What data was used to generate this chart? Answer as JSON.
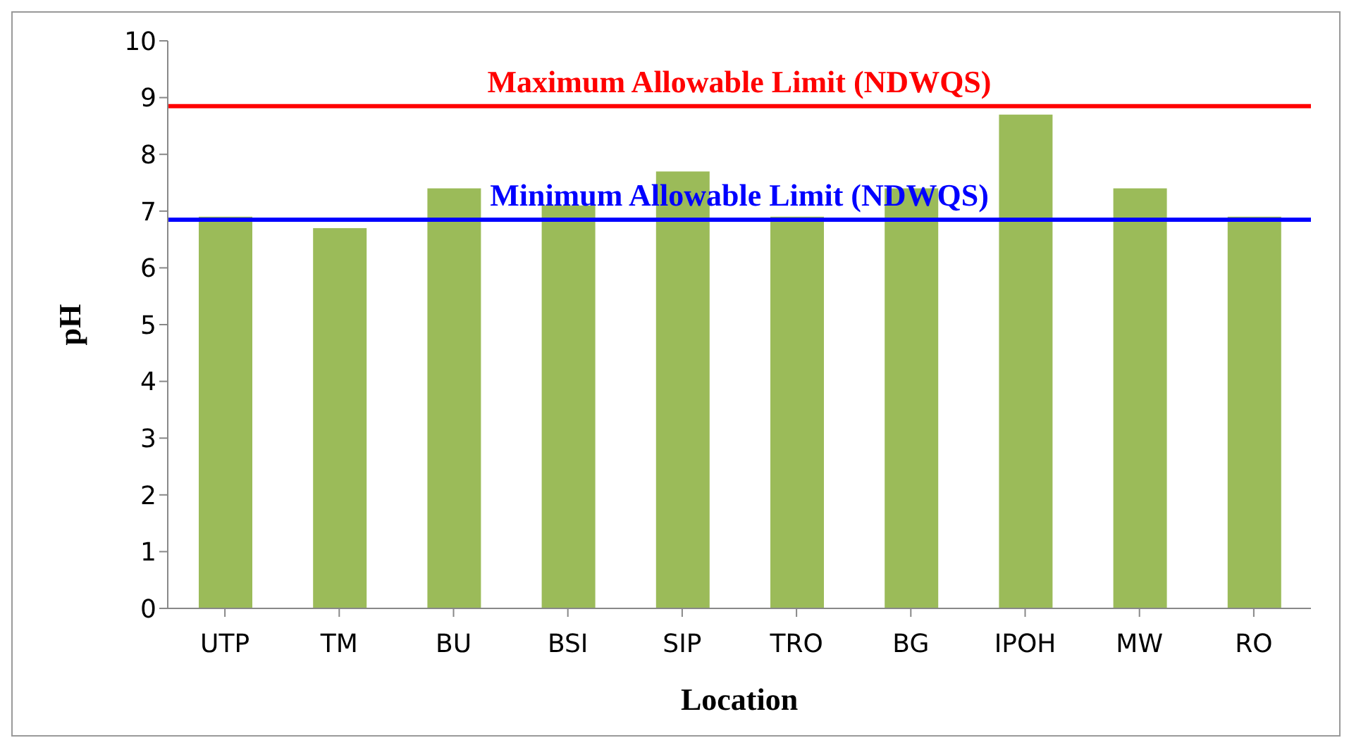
{
  "chart_data": {
    "type": "bar",
    "xlabel": "Location",
    "ylabel": "pH",
    "categories": [
      "UTP",
      "TM",
      "BU",
      "BSI",
      "SIP",
      "TRO",
      "BG",
      "IPOH",
      "MW",
      "RO"
    ],
    "values": [
      6.9,
      6.7,
      7.4,
      7.1,
      7.7,
      6.9,
      7.4,
      8.7,
      7.4,
      6.9
    ],
    "color": "#9bbb59",
    "ylim": [
      0,
      10
    ],
    "yticks": [
      0,
      1,
      2,
      3,
      4,
      5,
      6,
      7,
      8,
      9,
      10
    ],
    "grid": false,
    "legend": false,
    "ref_lines": [
      {
        "axis": "y",
        "value": 8.85,
        "label": "Maximum Allowable Limit (NDWQS)",
        "color": "#ff0000"
      },
      {
        "axis": "y",
        "value": 6.85,
        "label": "Minimum Allowable Limit (NDWQS)",
        "color": "#0000ff"
      }
    ]
  }
}
